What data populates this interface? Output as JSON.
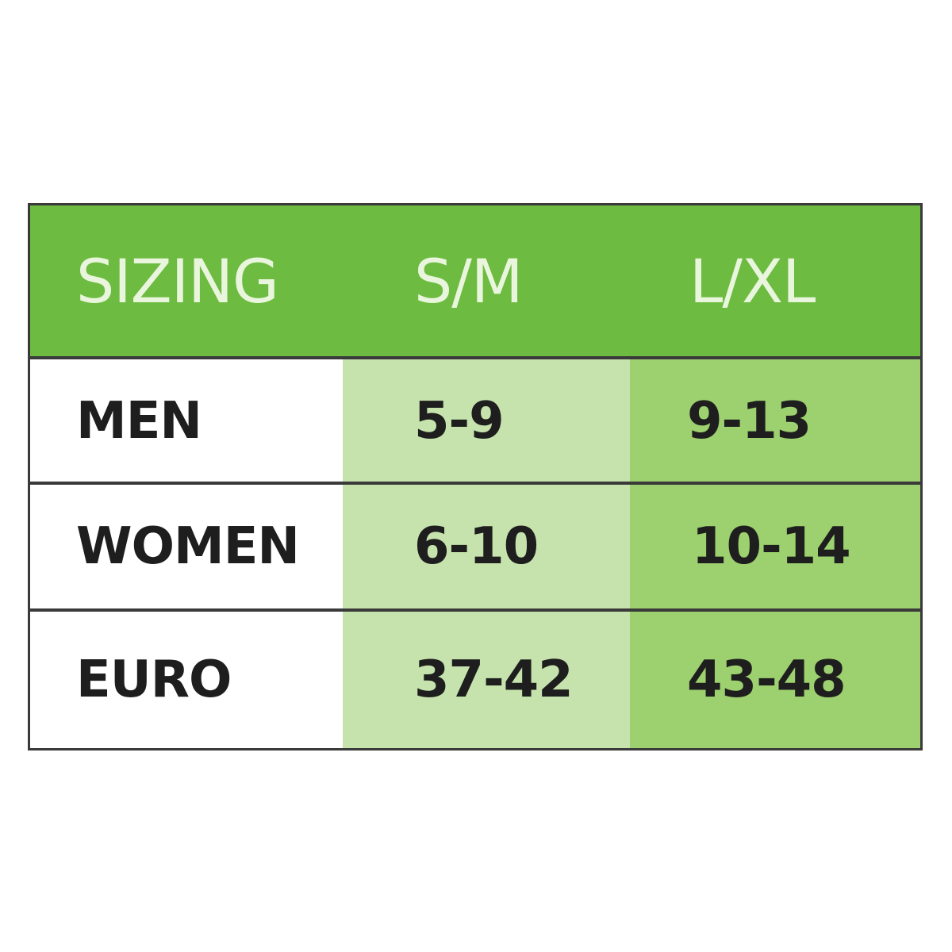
{
  "colors": {
    "header_bg": "#6dbb41",
    "header_text": "#e9f6dd",
    "sm_column": "#c6e3ad",
    "lxl_column": "#9dd06e",
    "border": "#3a3a3a"
  },
  "header": [
    "SIZING",
    "S/M",
    "L/XL"
  ],
  "rows": [
    [
      "MEN",
      "5-9",
      "9-13"
    ],
    [
      "WOMEN",
      "6-10",
      "10-14"
    ],
    [
      "EURO",
      "37-42",
      "43-48"
    ]
  ]
}
